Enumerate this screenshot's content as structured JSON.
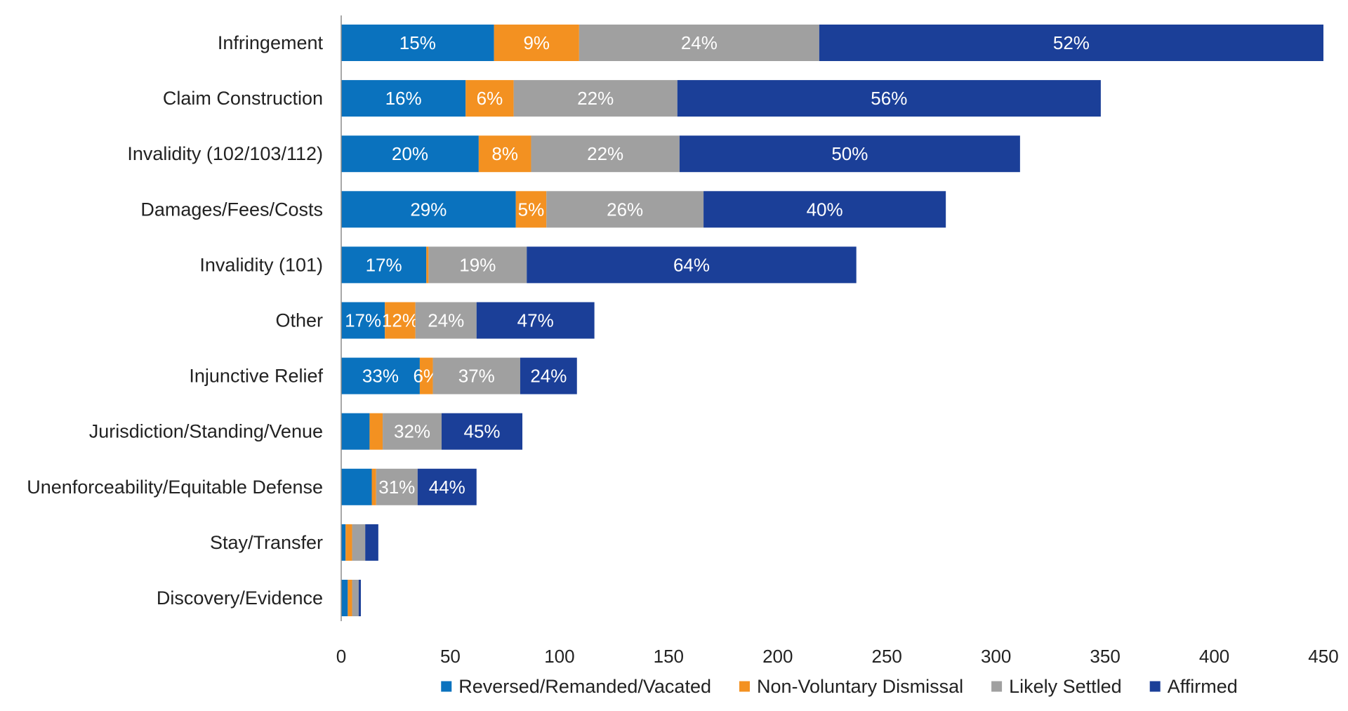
{
  "chart_data": {
    "type": "bar",
    "orientation": "horizontal",
    "stacked": true,
    "categories": [
      "Infringement",
      "Claim Construction",
      "Invalidity (102/103/112)",
      "Damages/Fees/Costs",
      "Invalidity (101)",
      "Other",
      "Injunctive Relief",
      "Jurisdiction/Standing/Venue",
      "Unenforceability/Equitable Defense",
      "Stay/Transfer",
      "Discovery/Evidence"
    ],
    "series": [
      {
        "name": "Reversed/Remanded/Vacated",
        "color": "#0A72BE",
        "values": [
          70,
          57,
          63,
          80,
          39,
          20,
          36,
          13,
          14,
          2,
          3
        ],
        "labels": [
          "15%",
          "16%",
          "20%",
          "29%",
          "17%",
          "17%",
          "33%",
          "",
          "",
          "",
          ""
        ]
      },
      {
        "name": "Non-Voluntary Dismissal",
        "color": "#F39121",
        "values": [
          39,
          22,
          24,
          14,
          1,
          14,
          6,
          6,
          2,
          3,
          2
        ],
        "labels": [
          "9%",
          "6%",
          "8%",
          "5%",
          "",
          "12%",
          "6%",
          "",
          "",
          "",
          ""
        ]
      },
      {
        "name": "Likely Settled",
        "color": "#A0A0A0",
        "values": [
          110,
          75,
          68,
          72,
          45,
          28,
          40,
          27,
          19,
          6,
          3
        ],
        "labels": [
          "24%",
          "22%",
          "22%",
          "26%",
          "19%",
          "24%",
          "37%",
          "32%",
          "31%",
          "",
          ""
        ]
      },
      {
        "name": "Affirmed",
        "color": "#1B3F98",
        "values": [
          231,
          194,
          156,
          111,
          151,
          54,
          26,
          37,
          27,
          6,
          1
        ],
        "labels": [
          "52%",
          "56%",
          "50%",
          "40%",
          "64%",
          "47%",
          "24%",
          "45%",
          "44%",
          "",
          ""
        ]
      }
    ],
    "xlim": [
      0,
      450
    ],
    "xticks": [
      "0",
      "50",
      "100",
      "150",
      "200",
      "250",
      "300",
      "350",
      "400",
      "450"
    ],
    "grid": false,
    "legend_position": "bottom",
    "title": "",
    "xlabel": "",
    "ylabel": ""
  }
}
